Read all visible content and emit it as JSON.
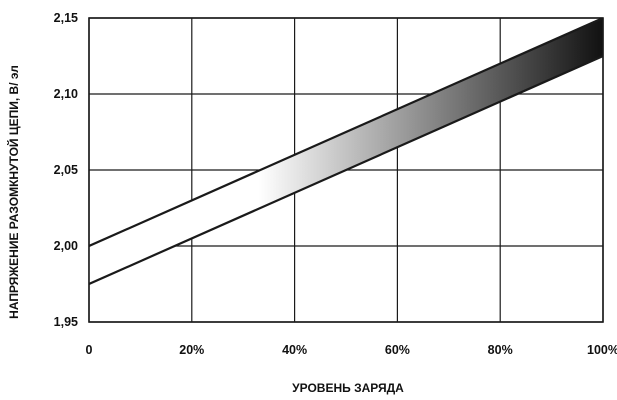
{
  "chart_data": {
    "type": "area",
    "title": "",
    "xlabel": "УРОВЕНЬ ЗАРЯДА",
    "ylabel": "НАПРЯЖЕНИЕ РАЗОМКНУТОЙ ЦЕПИ, В/ эл",
    "xlim": [
      0,
      100
    ],
    "ylim": [
      1.95,
      2.15
    ],
    "x_ticks": [
      0,
      20,
      40,
      60,
      80,
      100
    ],
    "x_tick_labels": [
      "0",
      "20%",
      "40%",
      "60%",
      "80%",
      "100%"
    ],
    "y_ticks": [
      1.95,
      2.0,
      2.05,
      2.1,
      2.15
    ],
    "y_tick_labels": [
      "1,95",
      "2,00",
      "2,05",
      "2,10",
      "2,15"
    ],
    "grid": true,
    "series": [
      {
        "x": [
          0,
          100
        ],
        "y": [
          2.0,
          2.15
        ]
      },
      {
        "x": [
          0,
          100
        ],
        "y": [
          1.975,
          2.125
        ]
      }
    ],
    "band_shading": {
      "from_x": 33,
      "to_x": 100,
      "color_start": "#ffffff",
      "color_end": "#111111"
    },
    "line_color": "#1a1a1a",
    "grid_color": "#1a1a1a"
  }
}
